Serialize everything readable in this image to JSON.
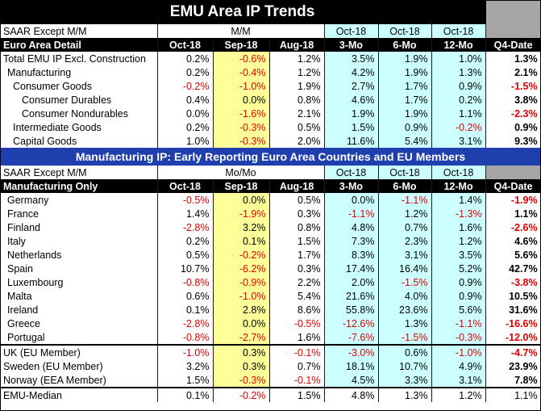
{
  "title": "EMU Area IP Trends",
  "top": {
    "saar_label": "SAAR Except M/M",
    "mm_label": "M/M",
    "oct_labels": [
      "Oct-18",
      "Oct-18",
      "Oct-18"
    ],
    "detail_label": "Euro Area Detail",
    "headers": [
      "Oct-18",
      "Sep-18",
      "Aug-18",
      "3-Mo",
      "6-Mo",
      "12-Mo",
      "Q4-Date"
    ],
    "rows": [
      {
        "label": "Total EMU IP Excl. Construction",
        "values": [
          "0.2%",
          "-0.6%",
          "1.2%",
          "3.5%",
          "1.9%",
          "1.0%",
          "1.3%"
        ]
      },
      {
        "label": "Manufacturing",
        "values": [
          "0.2%",
          "-0.4%",
          "1.2%",
          "4.2%",
          "1.9%",
          "1.3%",
          "2.1%"
        ]
      },
      {
        "label": "Consumer Goods",
        "values": [
          "-0.2%",
          "-1.0%",
          "1.9%",
          "2.7%",
          "1.7%",
          "0.9%",
          "-1.5%"
        ]
      },
      {
        "label": "Consumer Durables",
        "values": [
          "0.4%",
          "0.0%",
          "0.8%",
          "4.6%",
          "1.7%",
          "0.2%",
          "3.8%"
        ]
      },
      {
        "label": "Consumer Nondurables",
        "values": [
          "0.0%",
          "-1.6%",
          "2.1%",
          "1.9%",
          "1.9%",
          "1.1%",
          "-2.3%"
        ]
      },
      {
        "label": "Intermediate Goods",
        "values": [
          "0.2%",
          "-0.3%",
          "0.5%",
          "1.5%",
          "0.9%",
          "-0.2%",
          "0.9%"
        ]
      },
      {
        "label": "Capital Goods",
        "values": [
          "1.0%",
          "-0.3%",
          "2.0%",
          "11.6%",
          "5.4%",
          "3.1%",
          "9.3%"
        ]
      }
    ]
  },
  "band_title": "Manufacturing IP: Early Reporting Euro Area Countries and EU Members",
  "bottom": {
    "saar_label": "SAAR Except M/M",
    "mm_label": "Mo/Mo",
    "oct_labels": [
      "Oct-18",
      "Oct-18",
      "Oct-18"
    ],
    "detail_label": "Manufacturing Only",
    "headers": [
      "Oct-18",
      "Sep-18",
      "Aug-18",
      "3-Mo",
      "6-Mo",
      "12-Mo",
      "Q4-Date"
    ],
    "rows": [
      {
        "label": "Germany",
        "values": [
          "-0.5%",
          "0.0%",
          "0.5%",
          "0.0%",
          "-1.1%",
          "1.4%",
          "-1.9%"
        ]
      },
      {
        "label": "France",
        "values": [
          "1.4%",
          "-1.9%",
          "0.3%",
          "-1.1%",
          "1.2%",
          "-1.3%",
          "1.1%"
        ]
      },
      {
        "label": "Finland",
        "values": [
          "-2.8%",
          "3.2%",
          "0.8%",
          "4.8%",
          "0.7%",
          "1.6%",
          "-2.6%"
        ]
      },
      {
        "label": "Italy",
        "values": [
          "0.2%",
          "0.1%",
          "1.5%",
          "7.3%",
          "2.3%",
          "1.2%",
          "4.6%"
        ]
      },
      {
        "label": "Netherlands",
        "values": [
          "0.5%",
          "-0.2%",
          "1.7%",
          "8.3%",
          "3.1%",
          "3.5%",
          "5.6%"
        ]
      },
      {
        "label": "Spain",
        "values": [
          "10.7%",
          "-6.2%",
          "0.3%",
          "17.4%",
          "16.4%",
          "5.2%",
          "42.7%"
        ]
      },
      {
        "label": "Luxembourg",
        "values": [
          "-0.8%",
          "-0.9%",
          "2.2%",
          "2.0%",
          "-1.5%",
          "0.9%",
          "-3.8%"
        ]
      },
      {
        "label": "Malta",
        "values": [
          "0.6%",
          "-1.0%",
          "5.4%",
          "21.6%",
          "4.0%",
          "0.9%",
          "10.5%"
        ]
      },
      {
        "label": "Ireland",
        "values": [
          "0.1%",
          "2.8%",
          "8.6%",
          "55.8%",
          "23.6%",
          "5.6%",
          "31.6%"
        ]
      },
      {
        "label": "Greece",
        "values": [
          "-2.8%",
          "0.0%",
          "-0.5%",
          "-12.6%",
          "1.3%",
          "-1.1%",
          "-16.6%"
        ]
      },
      {
        "label": "Portugal",
        "values": [
          "-0.8%",
          "-2.7%",
          "1.6%",
          "-7.6%",
          "-1.5%",
          "-0.3%",
          "-12.0%"
        ]
      }
    ],
    "eu_rows": [
      {
        "label": "UK (EU Member)",
        "values": [
          "-1.0%",
          "0.3%",
          "-0.1%",
          "-3.0%",
          "0.6%",
          "-1.0%",
          "-4.7%"
        ]
      },
      {
        "label": "Sweden (EU Member)",
        "values": [
          "3.2%",
          "0.3%",
          "0.7%",
          "18.1%",
          "10.7%",
          "4.9%",
          "23.9%"
        ]
      },
      {
        "label": "Norway (EEA Member)",
        "values": [
          "1.5%",
          "-0.3%",
          "-0.1%",
          "4.5%",
          "3.3%",
          "3.1%",
          "7.8%"
        ]
      }
    ],
    "median_row": {
      "label": "EMU-Median",
      "values": [
        "0.1%",
        "-0.2%",
        "1.5%",
        "4.8%",
        "1.3%",
        "1.2%",
        "1.1%"
      ]
    }
  },
  "colors": {
    "negative": "#e00000",
    "cyan": "#ccffff",
    "yellow": "#ffff99",
    "band": "#1f3fae",
    "grey": "#a6a6a6"
  }
}
